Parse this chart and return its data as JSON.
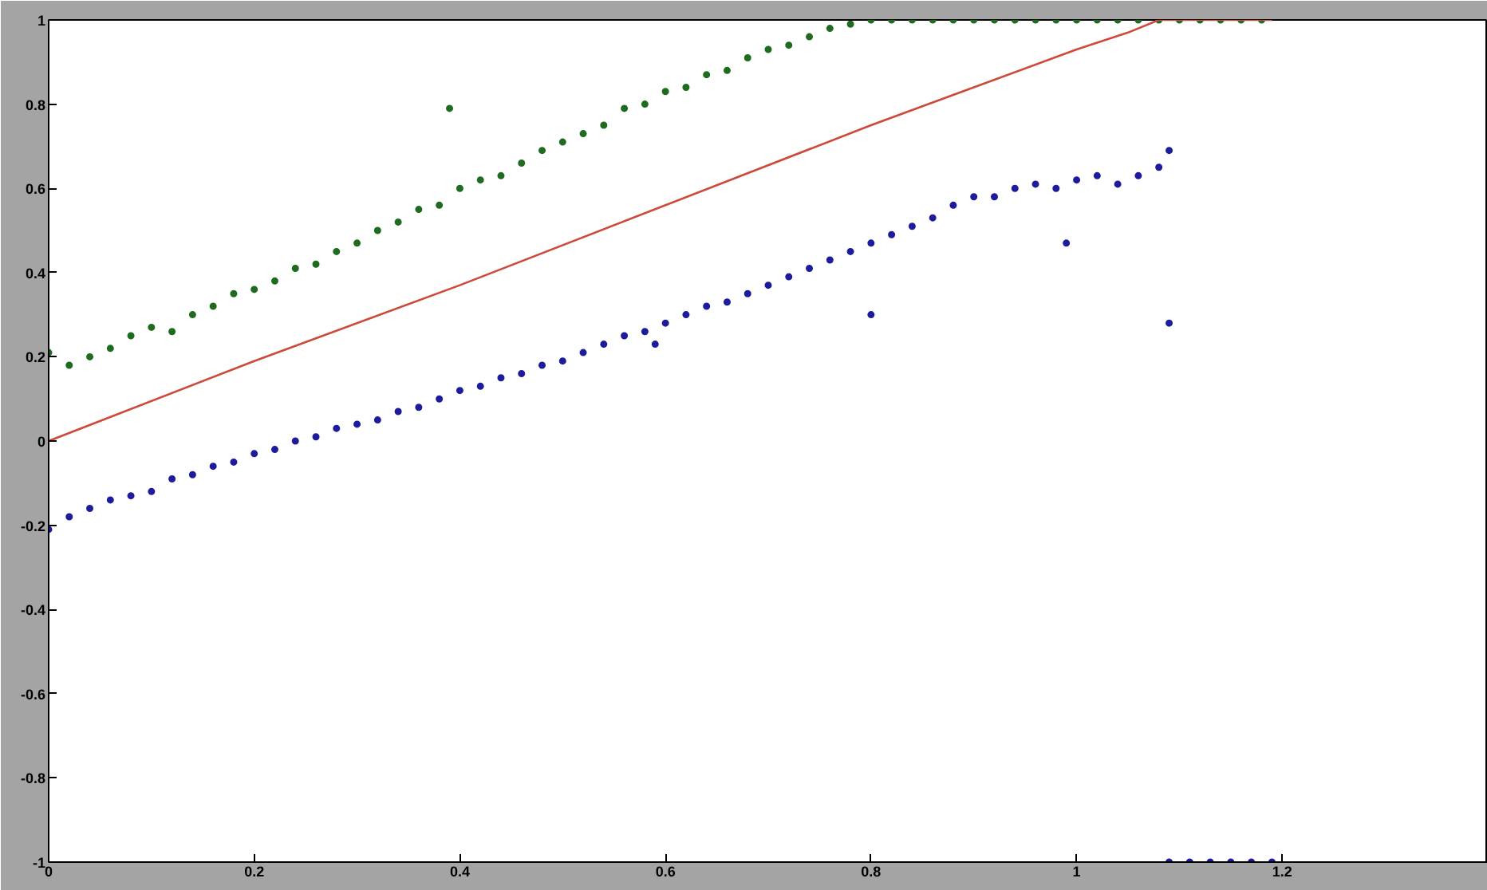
{
  "chart_data": {
    "type": "scatter",
    "xlim": [
      0,
      1.4
    ],
    "ylim": [
      -1,
      1
    ],
    "xticks": [
      0,
      0.2,
      0.4,
      0.6,
      0.8,
      1,
      1.2
    ],
    "yticks": [
      -1,
      -0.8,
      -0.6,
      -0.4,
      -0.2,
      0,
      0.2,
      0.4,
      0.6,
      0.8,
      1
    ],
    "grid": false,
    "marker": "circle",
    "series": [
      {
        "color": "#1f6b1f",
        "x": [
          0,
          0.02,
          0.04,
          0.06,
          0.08,
          0.1,
          0.12,
          0.14,
          0.16,
          0.18,
          0.2,
          0.22,
          0.24,
          0.26,
          0.28,
          0.3,
          0.32,
          0.34,
          0.36,
          0.38,
          0.39,
          0.4,
          0.42,
          0.44,
          0.46,
          0.48,
          0.5,
          0.52,
          0.54,
          0.56,
          0.58,
          0.6,
          0.62,
          0.64,
          0.66,
          0.68,
          0.7,
          0.72,
          0.74,
          0.76,
          0.78,
          0.8,
          0.82,
          0.84,
          0.86,
          0.88,
          0.9,
          0.92,
          0.94,
          0.96,
          0.98,
          1.0,
          1.02,
          1.04,
          1.06,
          1.08,
          1.1,
          1.12,
          1.14,
          1.16,
          1.18
        ],
        "values": [
          0.21,
          0.18,
          0.2,
          0.22,
          0.25,
          0.27,
          0.26,
          0.3,
          0.32,
          0.35,
          0.36,
          0.38,
          0.41,
          0.42,
          0.45,
          0.47,
          0.5,
          0.52,
          0.55,
          0.56,
          0.79,
          0.6,
          0.62,
          0.63,
          0.66,
          0.69,
          0.71,
          0.73,
          0.75,
          0.79,
          0.8,
          0.83,
          0.84,
          0.87,
          0.88,
          0.91,
          0.93,
          0.94,
          0.96,
          0.98,
          0.99,
          1,
          1,
          1,
          1,
          1,
          1,
          1,
          1,
          1,
          1,
          1,
          1,
          1,
          1,
          1,
          1,
          1,
          1,
          1,
          1
        ]
      },
      {
        "color": "#cc4a3a",
        "type": "line",
        "marker": "none",
        "x": [
          0,
          0.2,
          0.4,
          0.6,
          0.8,
          0.9,
          1.0,
          1.05,
          1.08,
          1.19
        ],
        "values": [
          0,
          0.19,
          0.37,
          0.56,
          0.75,
          0.84,
          0.93,
          0.97,
          1,
          1
        ]
      },
      {
        "color": "#1c1c9c",
        "x": [
          0,
          0.02,
          0.04,
          0.06,
          0.08,
          0.1,
          0.12,
          0.14,
          0.16,
          0.18,
          0.2,
          0.22,
          0.24,
          0.26,
          0.28,
          0.3,
          0.32,
          0.34,
          0.36,
          0.38,
          0.4,
          0.42,
          0.44,
          0.46,
          0.48,
          0.5,
          0.52,
          0.54,
          0.56,
          0.58,
          0.59,
          0.6,
          0.62,
          0.64,
          0.66,
          0.68,
          0.7,
          0.72,
          0.74,
          0.76,
          0.78,
          0.8,
          0.8,
          0.82,
          0.84,
          0.86,
          0.88,
          0.9,
          0.92,
          0.94,
          0.96,
          0.98,
          0.99,
          1.0,
          1.02,
          1.04,
          1.06,
          1.08,
          1.09,
          1.09,
          1.09,
          1.11,
          1.13,
          1.15,
          1.17,
          1.19
        ],
        "values": [
          -0.21,
          -0.18,
          -0.16,
          -0.14,
          -0.13,
          -0.12,
          -0.09,
          -0.08,
          -0.06,
          -0.05,
          -0.03,
          -0.02,
          0,
          0.01,
          0.03,
          0.04,
          0.05,
          0.07,
          0.08,
          0.1,
          0.12,
          0.13,
          0.15,
          0.16,
          0.18,
          0.19,
          0.21,
          0.23,
          0.25,
          0.26,
          0.23,
          0.28,
          0.3,
          0.32,
          0.33,
          0.35,
          0.37,
          0.39,
          0.41,
          0.43,
          0.45,
          0.47,
          0.3,
          0.49,
          0.51,
          0.53,
          0.56,
          0.58,
          0.58,
          0.6,
          0.61,
          0.6,
          0.47,
          0.62,
          0.63,
          0.61,
          0.63,
          0.65,
          0.69,
          0.28,
          -1,
          -1,
          -1,
          -1,
          -1,
          -1
        ]
      }
    ]
  }
}
